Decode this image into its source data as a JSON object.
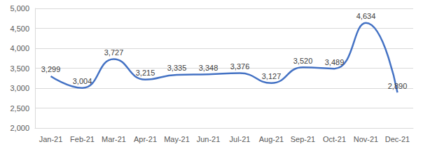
{
  "chart_data": {
    "type": "line",
    "categories": [
      "Jan-21",
      "Feb-21",
      "Mar-21",
      "Apr-21",
      "May-21",
      "Jun-21",
      "Jul-21",
      "Aug-21",
      "Sep-21",
      "Oct-21",
      "Nov-21",
      "Dec-21"
    ],
    "values": [
      3299,
      3004,
      3727,
      3215,
      3335,
      3348,
      3376,
      3127,
      3520,
      3489,
      4634,
      2890
    ],
    "value_labels": [
      "3,299",
      "3,004",
      "3,727",
      "3,215",
      "3,335",
      "3,348",
      "3,376",
      "3,127",
      "3,520",
      "3,489",
      "4,634",
      "2,890"
    ],
    "color": "#4472c4",
    "ylim": [
      2000,
      5000
    ],
    "yticks": [
      {
        "value": 2000,
        "label": "2,000"
      },
      {
        "value": 2500,
        "label": "2,500"
      },
      {
        "value": 3000,
        "label": "3,000"
      },
      {
        "value": 3500,
        "label": "3,500"
      },
      {
        "value": 4000,
        "label": "4,000"
      },
      {
        "value": 4500,
        "label": "4,500"
      },
      {
        "value": 5000,
        "label": "5,000"
      }
    ],
    "grid": true,
    "data_labels": true
  }
}
